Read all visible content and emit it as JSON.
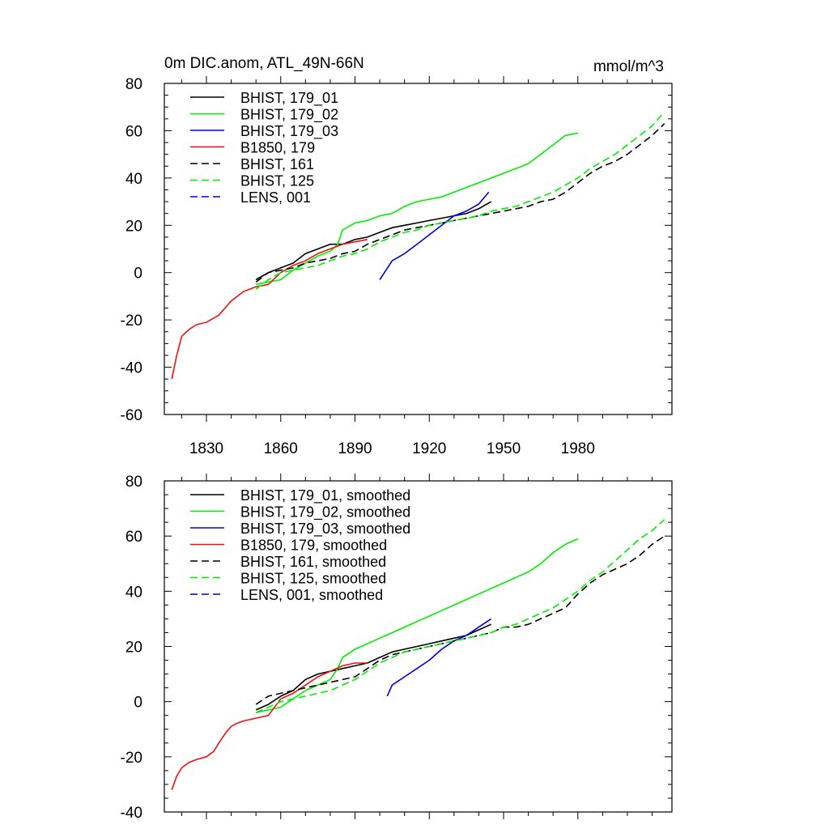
{
  "header": {
    "title": "0m DIC.anom, ATL_49N-66N",
    "units": "mmol/m^3"
  },
  "colors": {
    "black": "#000000",
    "green": "#00ee00",
    "blue": "#0000dd",
    "red": "#ee1111"
  },
  "chart_data": [
    {
      "type": "line",
      "xlim": [
        1813,
        2018
      ],
      "ylim": [
        -60,
        80
      ],
      "yticks": [
        -60,
        -40,
        -20,
        0,
        20,
        40,
        60,
        80
      ],
      "xticks": [
        1830,
        1860,
        1890,
        1920,
        1950,
        1980
      ],
      "xtick_labels": [
        "1830",
        "1860",
        "1890",
        "1920",
        "1950",
        "1980"
      ],
      "ytick_labels": [
        "-60",
        "-40",
        "-20",
        "0",
        "20",
        "40",
        "60",
        "80"
      ],
      "legend_position": "top-left",
      "series": [
        {
          "name": "BHIST, 179_01",
          "color": "#000000",
          "dash": false,
          "x": [
            1850,
            1855,
            1860,
            1865,
            1870,
            1875,
            1880,
            1885,
            1890,
            1895,
            1900,
            1905,
            1910,
            1915,
            1920,
            1925,
            1930,
            1935,
            1940,
            1945
          ],
          "y": [
            -3,
            0,
            2,
            4,
            8,
            10,
            12,
            12,
            14,
            15,
            17,
            19,
            20,
            21,
            22,
            23,
            24,
            25,
            27,
            30
          ]
        },
        {
          "name": "BHIST, 179_02",
          "color": "#00ee00",
          "dash": false,
          "x": [
            1850,
            1855,
            1860,
            1865,
            1870,
            1875,
            1880,
            1883,
            1885,
            1890,
            1895,
            1900,
            1905,
            1910,
            1915,
            1920,
            1925,
            1930,
            1935,
            1940,
            1945,
            1950,
            1955,
            1960,
            1965,
            1970,
            1975,
            1980
          ],
          "y": [
            -5,
            -4,
            -3,
            1,
            4,
            7,
            9,
            12,
            18,
            21,
            22,
            24,
            25,
            28,
            30,
            31,
            32,
            34,
            36,
            38,
            40,
            42,
            44,
            46,
            50,
            54,
            58,
            59
          ]
        },
        {
          "name": "BHIST, 179_03",
          "color": "#0000dd",
          "dash": false,
          "x": [
            1900,
            1905,
            1910,
            1915,
            1920,
            1925,
            1930,
            1935,
            1940,
            1944
          ],
          "y": [
            -3,
            5,
            8,
            12,
            16,
            20,
            24,
            26,
            29,
            34
          ]
        },
        {
          "name": "B1850, 179",
          "color": "#ee1111",
          "dash": false,
          "x": [
            1816,
            1818,
            1820,
            1823,
            1826,
            1830,
            1835,
            1840,
            1845,
            1850,
            1855,
            1860,
            1865,
            1870,
            1875,
            1880,
            1885,
            1890,
            1895
          ],
          "y": [
            -45,
            -35,
            -27,
            -24,
            -22,
            -21,
            -18,
            -12,
            -8,
            -6,
            -5,
            0,
            3,
            5,
            8,
            10,
            12,
            13,
            14
          ]
        },
        {
          "name": "BHIST, 161",
          "color": "#000000",
          "dash": true,
          "x": [
            1850,
            1855,
            1860,
            1865,
            1870,
            1875,
            1880,
            1885,
            1890,
            1895,
            1900,
            1905,
            1910,
            1915,
            1920,
            1925,
            1930,
            1935,
            1940,
            1945,
            1950,
            1955,
            1960,
            1965,
            1970,
            1975,
            1980,
            1985,
            1990,
            1995,
            2000,
            2005,
            2010,
            2015
          ],
          "y": [
            -4,
            0,
            1,
            2,
            4,
            5,
            6,
            8,
            9,
            12,
            14,
            16,
            18,
            19,
            20,
            21,
            22,
            23,
            24,
            25,
            26,
            27,
            28,
            30,
            31,
            34,
            38,
            42,
            45,
            47,
            50,
            54,
            58,
            63
          ]
        },
        {
          "name": "BHIST, 125",
          "color": "#00ee00",
          "dash": true,
          "x": [
            1850,
            1855,
            1860,
            1865,
            1870,
            1875,
            1880,
            1885,
            1890,
            1895,
            1900,
            1905,
            1910,
            1915,
            1920,
            1925,
            1930,
            1935,
            1940,
            1945,
            1950,
            1955,
            1960,
            1965,
            1970,
            1975,
            1980,
            1985,
            1990,
            1995,
            2000,
            2005,
            2010,
            2015
          ],
          "y": [
            -7,
            -3,
            0,
            1,
            2,
            3,
            5,
            7,
            8,
            10,
            13,
            15,
            17,
            18,
            20,
            21,
            22,
            23,
            24,
            26,
            27,
            28,
            30,
            32,
            34,
            37,
            40,
            44,
            47,
            50,
            54,
            58,
            62,
            68
          ]
        },
        {
          "name": "LENS, 001",
          "color": "#0000dd",
          "dash": true,
          "x": [],
          "y": []
        }
      ]
    },
    {
      "type": "line",
      "xlim": [
        1813,
        2018
      ],
      "ylim": [
        -40,
        80
      ],
      "yticks": [
        -40,
        -20,
        0,
        20,
        40,
        60,
        80
      ],
      "ytick_labels": [
        "-40",
        "-20",
        "0",
        "20",
        "40",
        "60",
        "80"
      ],
      "xticks": [
        1830,
        1860,
        1890,
        1920,
        1950,
        1980
      ],
      "legend_position": "top-left",
      "series": [
        {
          "name": "BHIST, 179_01, smoothed",
          "color": "#000000",
          "dash": false,
          "x": [
            1850,
            1855,
            1860,
            1865,
            1870,
            1875,
            1880,
            1885,
            1890,
            1895,
            1900,
            1905,
            1910,
            1915,
            1920,
            1925,
            1930,
            1935,
            1940,
            1945
          ],
          "y": [
            -3,
            -1,
            2,
            4,
            8,
            10,
            11,
            12,
            13,
            14,
            16,
            18,
            19,
            20,
            21,
            22,
            23,
            24,
            26,
            28
          ]
        },
        {
          "name": "BHIST, 179_02, smoothed",
          "color": "#00ee00",
          "dash": false,
          "x": [
            1850,
            1855,
            1860,
            1865,
            1870,
            1875,
            1880,
            1883,
            1885,
            1890,
            1895,
            1900,
            1905,
            1910,
            1915,
            1920,
            1925,
            1930,
            1935,
            1940,
            1945,
            1950,
            1955,
            1960,
            1965,
            1970,
            1975,
            1980
          ],
          "y": [
            -4,
            -3,
            -2,
            1,
            4,
            6,
            8,
            12,
            16,
            19,
            21,
            23,
            25,
            27,
            29,
            31,
            33,
            35,
            37,
            39,
            41,
            43,
            45,
            47,
            50,
            54,
            57,
            59
          ]
        },
        {
          "name": "BHIST, 179_03, smoothed",
          "color": "#0000dd",
          "dash": false,
          "x": [
            1903,
            1905,
            1910,
            1915,
            1920,
            1925,
            1930,
            1935,
            1940,
            1945
          ],
          "y": [
            2,
            6,
            9,
            12,
            15,
            19,
            22,
            24,
            27,
            30
          ]
        },
        {
          "name": "B1850, 179, smoothed",
          "color": "#ee1111",
          "dash": false,
          "x": [
            1816,
            1818,
            1820,
            1823,
            1826,
            1830,
            1833,
            1835,
            1838,
            1840,
            1842,
            1845,
            1850,
            1855,
            1860,
            1865,
            1870,
            1875,
            1880,
            1885,
            1890,
            1895
          ],
          "y": [
            -32,
            -27,
            -24,
            -22,
            -21,
            -20,
            -18,
            -15,
            -11,
            -9,
            -8,
            -7,
            -6,
            -5,
            1,
            3,
            6,
            9,
            11,
            13,
            14,
            14
          ]
        },
        {
          "name": "BHIST, 161, smoothed",
          "color": "#000000",
          "dash": true,
          "x": [
            1850,
            1855,
            1860,
            1865,
            1870,
            1875,
            1880,
            1885,
            1890,
            1895,
            1900,
            1905,
            1910,
            1915,
            1920,
            1925,
            1930,
            1935,
            1940,
            1945,
            1950,
            1955,
            1960,
            1965,
            1970,
            1975,
            1980,
            1985,
            1990,
            1995,
            2000,
            2005,
            2010,
            2015
          ],
          "y": [
            -1,
            2,
            3,
            4,
            5,
            6,
            7,
            8,
            9,
            12,
            15,
            17,
            18,
            19,
            20,
            21,
            22,
            23,
            24,
            25,
            27,
            27,
            28,
            30,
            32,
            34,
            39,
            43,
            46,
            48,
            50,
            53,
            57,
            60
          ]
        },
        {
          "name": "BHIST, 125, smoothed",
          "color": "#00ee00",
          "dash": true,
          "x": [
            1850,
            1855,
            1860,
            1865,
            1870,
            1875,
            1880,
            1885,
            1890,
            1895,
            1900,
            1905,
            1910,
            1915,
            1920,
            1925,
            1930,
            1935,
            1940,
            1945,
            1950,
            1955,
            1960,
            1965,
            1970,
            1975,
            1980,
            1985,
            1990,
            1995,
            2000,
            2005,
            2010,
            2015
          ],
          "y": [
            -4,
            -2,
            0,
            1,
            2,
            3,
            4,
            6,
            8,
            11,
            14,
            16,
            18,
            19,
            20,
            21,
            22,
            23,
            24,
            25,
            27,
            28,
            30,
            32,
            34,
            37,
            40,
            44,
            47,
            51,
            55,
            59,
            62,
            66
          ]
        },
        {
          "name": "LENS, 001, smoothed",
          "color": "#0000dd",
          "dash": true,
          "x": [],
          "y": []
        }
      ]
    }
  ]
}
